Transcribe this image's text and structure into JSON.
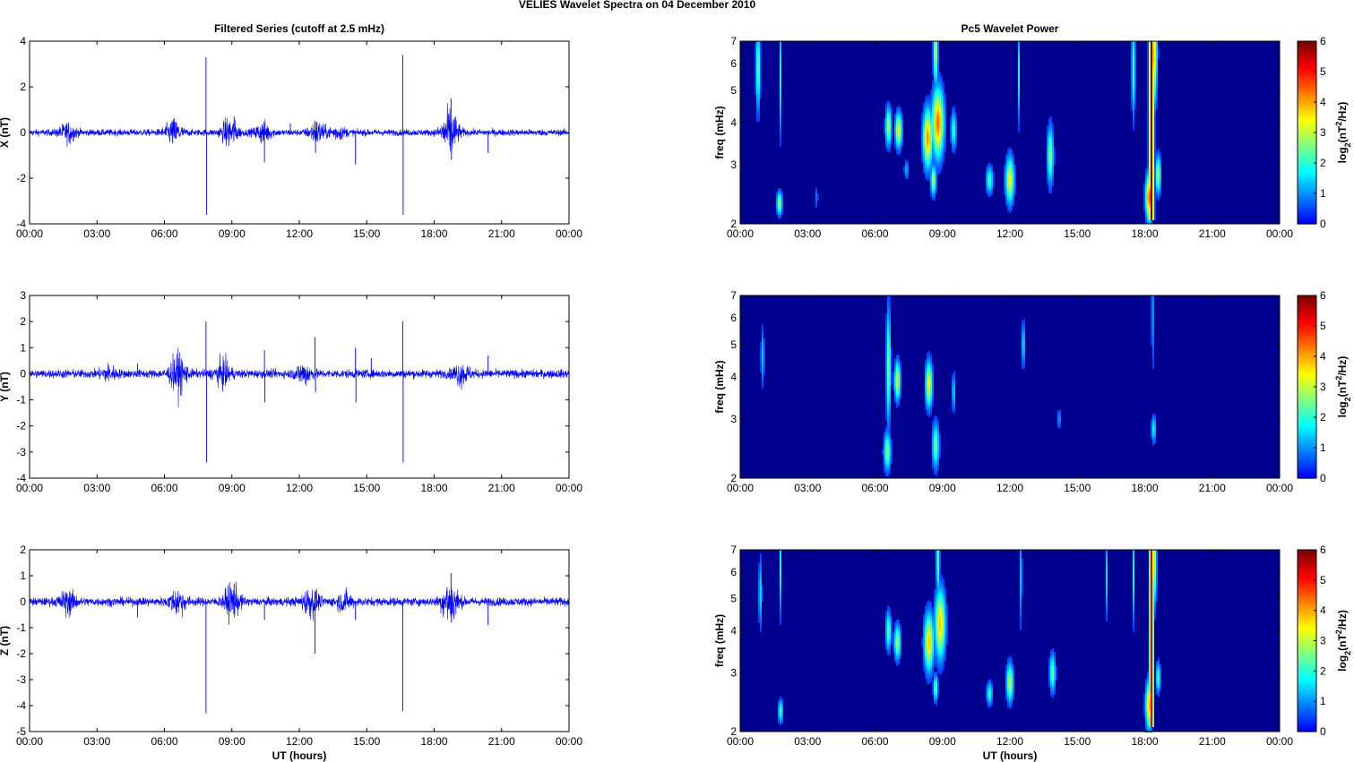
{
  "figure": {
    "title": "VELIES Wavelet Spectra on 04 December  2010"
  },
  "colors": {
    "signal": "#0000ff",
    "background": "#00008f",
    "axis": "#000000"
  },
  "chart_data": [
    {
      "type": "line",
      "title": "Filtered Series (cutoff at 2.5 mHz)",
      "ylabel": "X (nT)",
      "xlabel": "",
      "xlim": [
        0,
        24
      ],
      "ylim": [
        -4,
        4
      ],
      "xticks": [
        "00:00",
        "03:00",
        "06:00",
        "09:00",
        "12:00",
        "15:00",
        "18:00",
        "21:00",
        "00:00"
      ],
      "yticks": [
        "-4",
        "-2",
        "0",
        "2",
        "4"
      ],
      "ytick_values": [
        -4,
        -2,
        0,
        2,
        4
      ],
      "series": [
        {
          "baseline": 0,
          "noise_amp": 0.07,
          "activity": [
            [
              1.7,
              0.18
            ],
            [
              6.4,
              0.25
            ],
            [
              8.9,
              0.3
            ],
            [
              10.4,
              0.2
            ],
            [
              12.8,
              0.22
            ],
            [
              18.7,
              0.5
            ],
            [
              13.7,
              0.12
            ]
          ],
          "spikes": [
            [
              7.85,
              3.3
            ],
            [
              7.87,
              -3.6
            ],
            [
              16.6,
              3.4
            ],
            [
              16.62,
              -3.6
            ],
            [
              10.45,
              -1.3
            ],
            [
              18.75,
              1.5
            ],
            [
              18.77,
              -1.2
            ],
            [
              12.7,
              0.5
            ],
            [
              12.72,
              -0.9
            ],
            [
              14.5,
              -1.4
            ],
            [
              20.4,
              -0.9
            ],
            [
              1.8,
              -0.5
            ],
            [
              11.6,
              0.4
            ],
            [
              9.1,
              0.7
            ]
          ]
        }
      ]
    },
    {
      "type": "line",
      "title": "",
      "ylabel": "Y (nT)",
      "xlabel": "",
      "xlim": [
        0,
        24
      ],
      "ylim": [
        -4,
        3
      ],
      "xticks": [
        "00:00",
        "03:00",
        "06:00",
        "09:00",
        "12:00",
        "15:00",
        "18:00",
        "21:00",
        "00:00"
      ],
      "yticks": [
        "-4",
        "-3",
        "-2",
        "-1",
        "0",
        "1",
        "2",
        "3"
      ],
      "ytick_values": [
        -4,
        -3,
        -2,
        -1,
        0,
        1,
        2,
        3
      ],
      "series": [
        {
          "baseline": 0,
          "noise_amp": 0.08,
          "activity": [
            [
              6.6,
              0.35
            ],
            [
              8.6,
              0.22
            ],
            [
              12.2,
              0.18
            ],
            [
              19.2,
              0.18
            ],
            [
              3.5,
              0.12
            ]
          ],
          "spikes": [
            [
              7.85,
              2.0
            ],
            [
              7.87,
              -3.4
            ],
            [
              16.6,
              2.0
            ],
            [
              16.62,
              -3.4
            ],
            [
              10.45,
              0.9
            ],
            [
              10.47,
              -1.1
            ],
            [
              12.7,
              1.4
            ],
            [
              12.72,
              -0.7
            ],
            [
              14.5,
              1.0
            ],
            [
              14.52,
              -1.1
            ],
            [
              15.2,
              0.6
            ],
            [
              20.4,
              0.7
            ],
            [
              4.8,
              0.4
            ]
          ]
        }
      ]
    },
    {
      "type": "line",
      "title": "",
      "ylabel": "Z (nT)",
      "xlabel": "UT (hours)",
      "xlim": [
        0,
        24
      ],
      "ylim": [
        -5,
        2
      ],
      "xticks": [
        "00:00",
        "03:00",
        "06:00",
        "09:00",
        "12:00",
        "15:00",
        "18:00",
        "21:00",
        "00:00"
      ],
      "yticks": [
        "-5",
        "-4",
        "-3",
        "-2",
        "-1",
        "0",
        "1",
        "2"
      ],
      "ytick_values": [
        -5,
        -4,
        -3,
        -2,
        -1,
        0,
        1,
        2
      ],
      "series": [
        {
          "baseline": 0,
          "noise_amp": 0.08,
          "activity": [
            [
              1.7,
              0.2
            ],
            [
              6.6,
              0.22
            ],
            [
              9.0,
              0.3
            ],
            [
              12.5,
              0.25
            ],
            [
              18.7,
              0.4
            ],
            [
              14.0,
              0.15
            ]
          ],
          "spikes": [
            [
              7.85,
              -4.3
            ],
            [
              16.6,
              -4.2
            ],
            [
              12.7,
              -2.0
            ],
            [
              18.75,
              1.1
            ],
            [
              18.77,
              -0.8
            ],
            [
              10.45,
              -0.7
            ],
            [
              14.5,
              -0.7
            ],
            [
              20.4,
              -0.9
            ],
            [
              4.8,
              -0.6
            ],
            [
              9.1,
              0.7
            ]
          ]
        }
      ]
    },
    {
      "type": "heatmap",
      "title": "Pc5 Wavelet Power",
      "ylabel": "freq (mHz)",
      "xlabel": "",
      "colorbar_label": "log2(nT2/Hz)",
      "xlim": [
        0,
        24
      ],
      "ylim": [
        2,
        7
      ],
      "y_scale": "log",
      "clim": [
        0,
        6
      ],
      "xticks": [
        "00:00",
        "03:00",
        "06:00",
        "09:00",
        "12:00",
        "15:00",
        "18:00",
        "21:00",
        "00:00"
      ],
      "yticks": [
        "2",
        "3",
        "4",
        "5",
        "6",
        "7"
      ],
      "ytick_values": [
        2,
        3,
        4,
        5,
        6,
        7
      ],
      "cticks": [
        "0",
        "1",
        "2",
        "3",
        "4",
        "5",
        "6"
      ],
      "blobs": [
        {
          "t": 0.8,
          "f": 5.8,
          "dt": 0.1,
          "df": 0.22,
          "p": 2.4
        },
        {
          "t": 1.75,
          "f": 2.3,
          "dt": 0.12,
          "df": 0.06,
          "p": 2.8
        },
        {
          "t": 1.8,
          "f": 5.5,
          "dt": 0.05,
          "df": 0.3,
          "p": 1.8
        },
        {
          "t": 3.4,
          "f": 2.4,
          "dt": 0.08,
          "df": 0.06,
          "p": 0.8
        },
        {
          "t": 6.6,
          "f": 3.9,
          "dt": 0.13,
          "df": 0.1,
          "p": 2.9
        },
        {
          "t": 7.05,
          "f": 3.8,
          "dt": 0.15,
          "df": 0.09,
          "p": 3.4
        },
        {
          "t": 7.4,
          "f": 2.9,
          "dt": 0.1,
          "df": 0.05,
          "p": 1.2
        },
        {
          "t": 8.35,
          "f": 3.6,
          "dt": 0.2,
          "df": 0.15,
          "p": 4.2
        },
        {
          "t": 8.6,
          "f": 2.7,
          "dt": 0.12,
          "df": 0.08,
          "p": 2.8
        },
        {
          "t": 8.8,
          "f": 4.0,
          "dt": 0.25,
          "df": 0.18,
          "p": 4.4
        },
        {
          "t": 8.7,
          "f": 6.5,
          "dt": 0.1,
          "df": 0.18,
          "p": 3.0
        },
        {
          "t": 9.5,
          "f": 3.8,
          "dt": 0.12,
          "df": 0.1,
          "p": 2.0
        },
        {
          "t": 11.1,
          "f": 2.7,
          "dt": 0.15,
          "df": 0.07,
          "p": 2.2
        },
        {
          "t": 12.0,
          "f": 2.7,
          "dt": 0.18,
          "df": 0.12,
          "p": 3.4
        },
        {
          "t": 12.4,
          "f": 5.6,
          "dt": 0.06,
          "df": 0.25,
          "p": 1.8
        },
        {
          "t": 13.8,
          "f": 3.2,
          "dt": 0.14,
          "df": 0.15,
          "p": 2.6
        },
        {
          "t": 17.5,
          "f": 5.8,
          "dt": 0.08,
          "df": 0.25,
          "p": 2.2
        },
        {
          "t": 18.2,
          "f": 2.4,
          "dt": 0.15,
          "df": 0.12,
          "p": 4.6
        },
        {
          "t": 18.4,
          "f": 6.4,
          "dt": 0.14,
          "df": 0.25,
          "p": 4.0
        },
        {
          "t": 18.6,
          "f": 2.8,
          "dt": 0.12,
          "df": 0.1,
          "p": 2.8
        }
      ],
      "ridges": [
        {
          "t": 18.3,
          "fmin": 2.05,
          "fmax": 7.0,
          "p": 6.0,
          "w": 0.1
        }
      ]
    },
    {
      "type": "heatmap",
      "title": "",
      "ylabel": "freq (mHz)",
      "xlabel": "",
      "colorbar_label": "log2(nT2/Hz)",
      "xlim": [
        0,
        24
      ],
      "ylim": [
        2,
        7
      ],
      "y_scale": "log",
      "clim": [
        0,
        6
      ],
      "xticks": [
        "00:00",
        "03:00",
        "06:00",
        "09:00",
        "12:00",
        "15:00",
        "18:00",
        "21:00",
        "00:00"
      ],
      "yticks": [
        "2",
        "3",
        "4",
        "5",
        "6",
        "7"
      ],
      "ytick_values": [
        2,
        3,
        4,
        5,
        6,
        7
      ],
      "cticks": [
        "0",
        "1",
        "2",
        "3",
        "4",
        "5",
        "6"
      ],
      "blobs": [
        {
          "t": 1.0,
          "f": 4.6,
          "dt": 0.08,
          "df": 0.15,
          "p": 1.4
        },
        {
          "t": 6.55,
          "f": 2.4,
          "dt": 0.15,
          "df": 0.1,
          "p": 2.6
        },
        {
          "t": 6.6,
          "f": 4.3,
          "dt": 0.1,
          "df": 0.3,
          "p": 2.6
        },
        {
          "t": 7.0,
          "f": 3.9,
          "dt": 0.13,
          "df": 0.1,
          "p": 3.2
        },
        {
          "t": 8.4,
          "f": 3.8,
          "dt": 0.15,
          "df": 0.12,
          "p": 3.4
        },
        {
          "t": 8.7,
          "f": 2.5,
          "dt": 0.15,
          "df": 0.12,
          "p": 2.4
        },
        {
          "t": 9.5,
          "f": 3.6,
          "dt": 0.08,
          "df": 0.1,
          "p": 1.5
        },
        {
          "t": 12.6,
          "f": 5.0,
          "dt": 0.08,
          "df": 0.12,
          "p": 1.6
        },
        {
          "t": 14.2,
          "f": 3.0,
          "dt": 0.1,
          "df": 0.05,
          "p": 1.0
        },
        {
          "t": 18.4,
          "f": 2.8,
          "dt": 0.1,
          "df": 0.07,
          "p": 1.8
        },
        {
          "t": 18.35,
          "f": 6.2,
          "dt": 0.05,
          "df": 0.3,
          "p": 1.4
        }
      ],
      "ridges": []
    },
    {
      "type": "heatmap",
      "title": "",
      "ylabel": "freq (mHz)",
      "xlabel": "UT (hours)",
      "colorbar_label": "log2(nT2/Hz)",
      "xlim": [
        0,
        24
      ],
      "ylim": [
        2,
        7
      ],
      "y_scale": "log",
      "clim": [
        0,
        6
      ],
      "xticks": [
        "00:00",
        "03:00",
        "06:00",
        "09:00",
        "12:00",
        "15:00",
        "18:00",
        "21:00",
        "00:00"
      ],
      "yticks": [
        "2",
        "3",
        "4",
        "5",
        "6",
        "7"
      ],
      "ytick_values": [
        2,
        3,
        4,
        5,
        6,
        7
      ],
      "cticks": [
        "0",
        "1",
        "2",
        "3",
        "4",
        "5",
        "6"
      ],
      "blobs": [
        {
          "t": 0.9,
          "f": 5.2,
          "dt": 0.08,
          "df": 0.18,
          "p": 1.6
        },
        {
          "t": 1.8,
          "f": 2.3,
          "dt": 0.1,
          "df": 0.06,
          "p": 2.2
        },
        {
          "t": 1.8,
          "f": 6.2,
          "dt": 0.05,
          "df": 0.25,
          "p": 1.8
        },
        {
          "t": 6.6,
          "f": 4.0,
          "dt": 0.12,
          "df": 0.1,
          "p": 2.4
        },
        {
          "t": 7.0,
          "f": 3.7,
          "dt": 0.14,
          "df": 0.09,
          "p": 2.8
        },
        {
          "t": 8.4,
          "f": 3.7,
          "dt": 0.2,
          "df": 0.15,
          "p": 3.8
        },
        {
          "t": 8.7,
          "f": 2.7,
          "dt": 0.1,
          "df": 0.07,
          "p": 2.4
        },
        {
          "t": 8.9,
          "f": 4.2,
          "dt": 0.22,
          "df": 0.18,
          "p": 3.8
        },
        {
          "t": 8.8,
          "f": 6.5,
          "dt": 0.08,
          "df": 0.18,
          "p": 2.4
        },
        {
          "t": 11.1,
          "f": 2.6,
          "dt": 0.13,
          "df": 0.06,
          "p": 2.0
        },
        {
          "t": 12.0,
          "f": 2.8,
          "dt": 0.15,
          "df": 0.1,
          "p": 3.0
        },
        {
          "t": 12.5,
          "f": 5.8,
          "dt": 0.05,
          "df": 0.25,
          "p": 1.6
        },
        {
          "t": 13.9,
          "f": 3.0,
          "dt": 0.13,
          "df": 0.1,
          "p": 2.4
        },
        {
          "t": 16.3,
          "f": 5.8,
          "dt": 0.05,
          "df": 0.2,
          "p": 1.6
        },
        {
          "t": 17.5,
          "f": 5.9,
          "dt": 0.06,
          "df": 0.25,
          "p": 1.8
        },
        {
          "t": 18.2,
          "f": 2.4,
          "dt": 0.15,
          "df": 0.12,
          "p": 4.0
        },
        {
          "t": 18.4,
          "f": 6.4,
          "dt": 0.12,
          "df": 0.22,
          "p": 3.4
        },
        {
          "t": 18.6,
          "f": 2.9,
          "dt": 0.1,
          "df": 0.08,
          "p": 2.2
        }
      ],
      "ridges": [
        {
          "t": 18.3,
          "fmin": 2.05,
          "fmax": 7.0,
          "p": 5.2,
          "w": 0.09
        }
      ]
    }
  ]
}
